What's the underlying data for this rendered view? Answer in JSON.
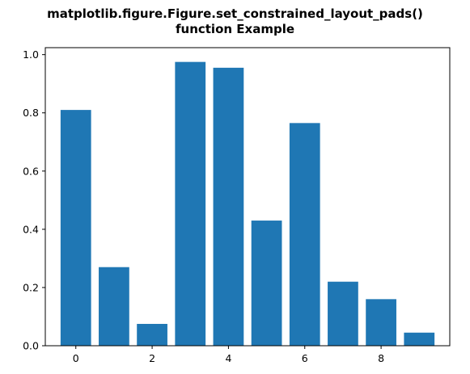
{
  "figure": {
    "title_line1": "matplotlib.figure.Figure.set_constrained_layout_pads()",
    "title_line2": "function Example"
  },
  "chart_data": {
    "type": "bar",
    "title": "matplotlib.figure.Figure.set_constrained_layout_pads()\nfunction Example",
    "xlabel": "",
    "ylabel": "",
    "x": [
      0,
      1,
      2,
      3,
      4,
      5,
      6,
      7,
      8,
      9
    ],
    "values": [
      0.81,
      0.27,
      0.075,
      0.975,
      0.955,
      0.43,
      0.765,
      0.22,
      0.16,
      0.045
    ],
    "bar_color": "#1f77b4",
    "xlim": [
      -0.8,
      9.8
    ],
    "ylim": [
      0,
      1.024
    ],
    "xticks": [
      0,
      2,
      4,
      6,
      8
    ],
    "xtick_labels": [
      "0",
      "2",
      "4",
      "6",
      "8"
    ],
    "yticks": [
      0.0,
      0.2,
      0.4,
      0.6,
      0.8,
      1.0
    ],
    "ytick_labels": [
      "0.0",
      "0.2",
      "0.4",
      "0.6",
      "0.8",
      "1.0"
    ],
    "grid": false,
    "legend": "none"
  }
}
